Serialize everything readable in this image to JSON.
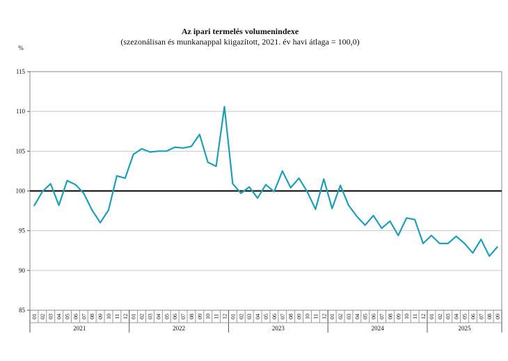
{
  "chart_data": {
    "type": "line",
    "title": "Az ipari termelés volumenindexe",
    "subtitle": "(szezonálisan és munkanappal kiigazított, 2021. év havi átlaga = 100,0)",
    "ylabel": "%",
    "ylim": [
      85,
      115
    ],
    "yticks": [
      "85",
      "90",
      "95",
      "100",
      "105",
      "110",
      "115"
    ],
    "grid": true,
    "reference_line": 100,
    "series_color": "#1e9fb8",
    "years": [
      "2021",
      "2022",
      "2023",
      "2024",
      "2025"
    ],
    "months_per_year": [
      12,
      12,
      12,
      12,
      9
    ],
    "month_labels": [
      "01",
      "02",
      "03",
      "04",
      "05",
      "06",
      "07",
      "08",
      "09",
      "10",
      "11",
      "12"
    ],
    "values": [
      98.1,
      99.9,
      100.9,
      98.2,
      101.3,
      100.8,
      99.7,
      97.6,
      96.0,
      97.6,
      101.9,
      101.6,
      104.6,
      105.3,
      104.9,
      105.0,
      105.0,
      105.5,
      105.4,
      105.6,
      107.1,
      103.6,
      103.1,
      110.6,
      100.9,
      99.7,
      100.5,
      99.1,
      100.8,
      99.9,
      102.5,
      100.4,
      101.6,
      99.9,
      97.7,
      101.5,
      97.8,
      100.7,
      98.2,
      96.8,
      95.7,
      96.9,
      95.3,
      96.2,
      94.4,
      96.6,
      96.4,
      93.4,
      94.4,
      93.4,
      93.4,
      94.3,
      93.4,
      92.2,
      93.9,
      91.8,
      93.0
    ]
  }
}
